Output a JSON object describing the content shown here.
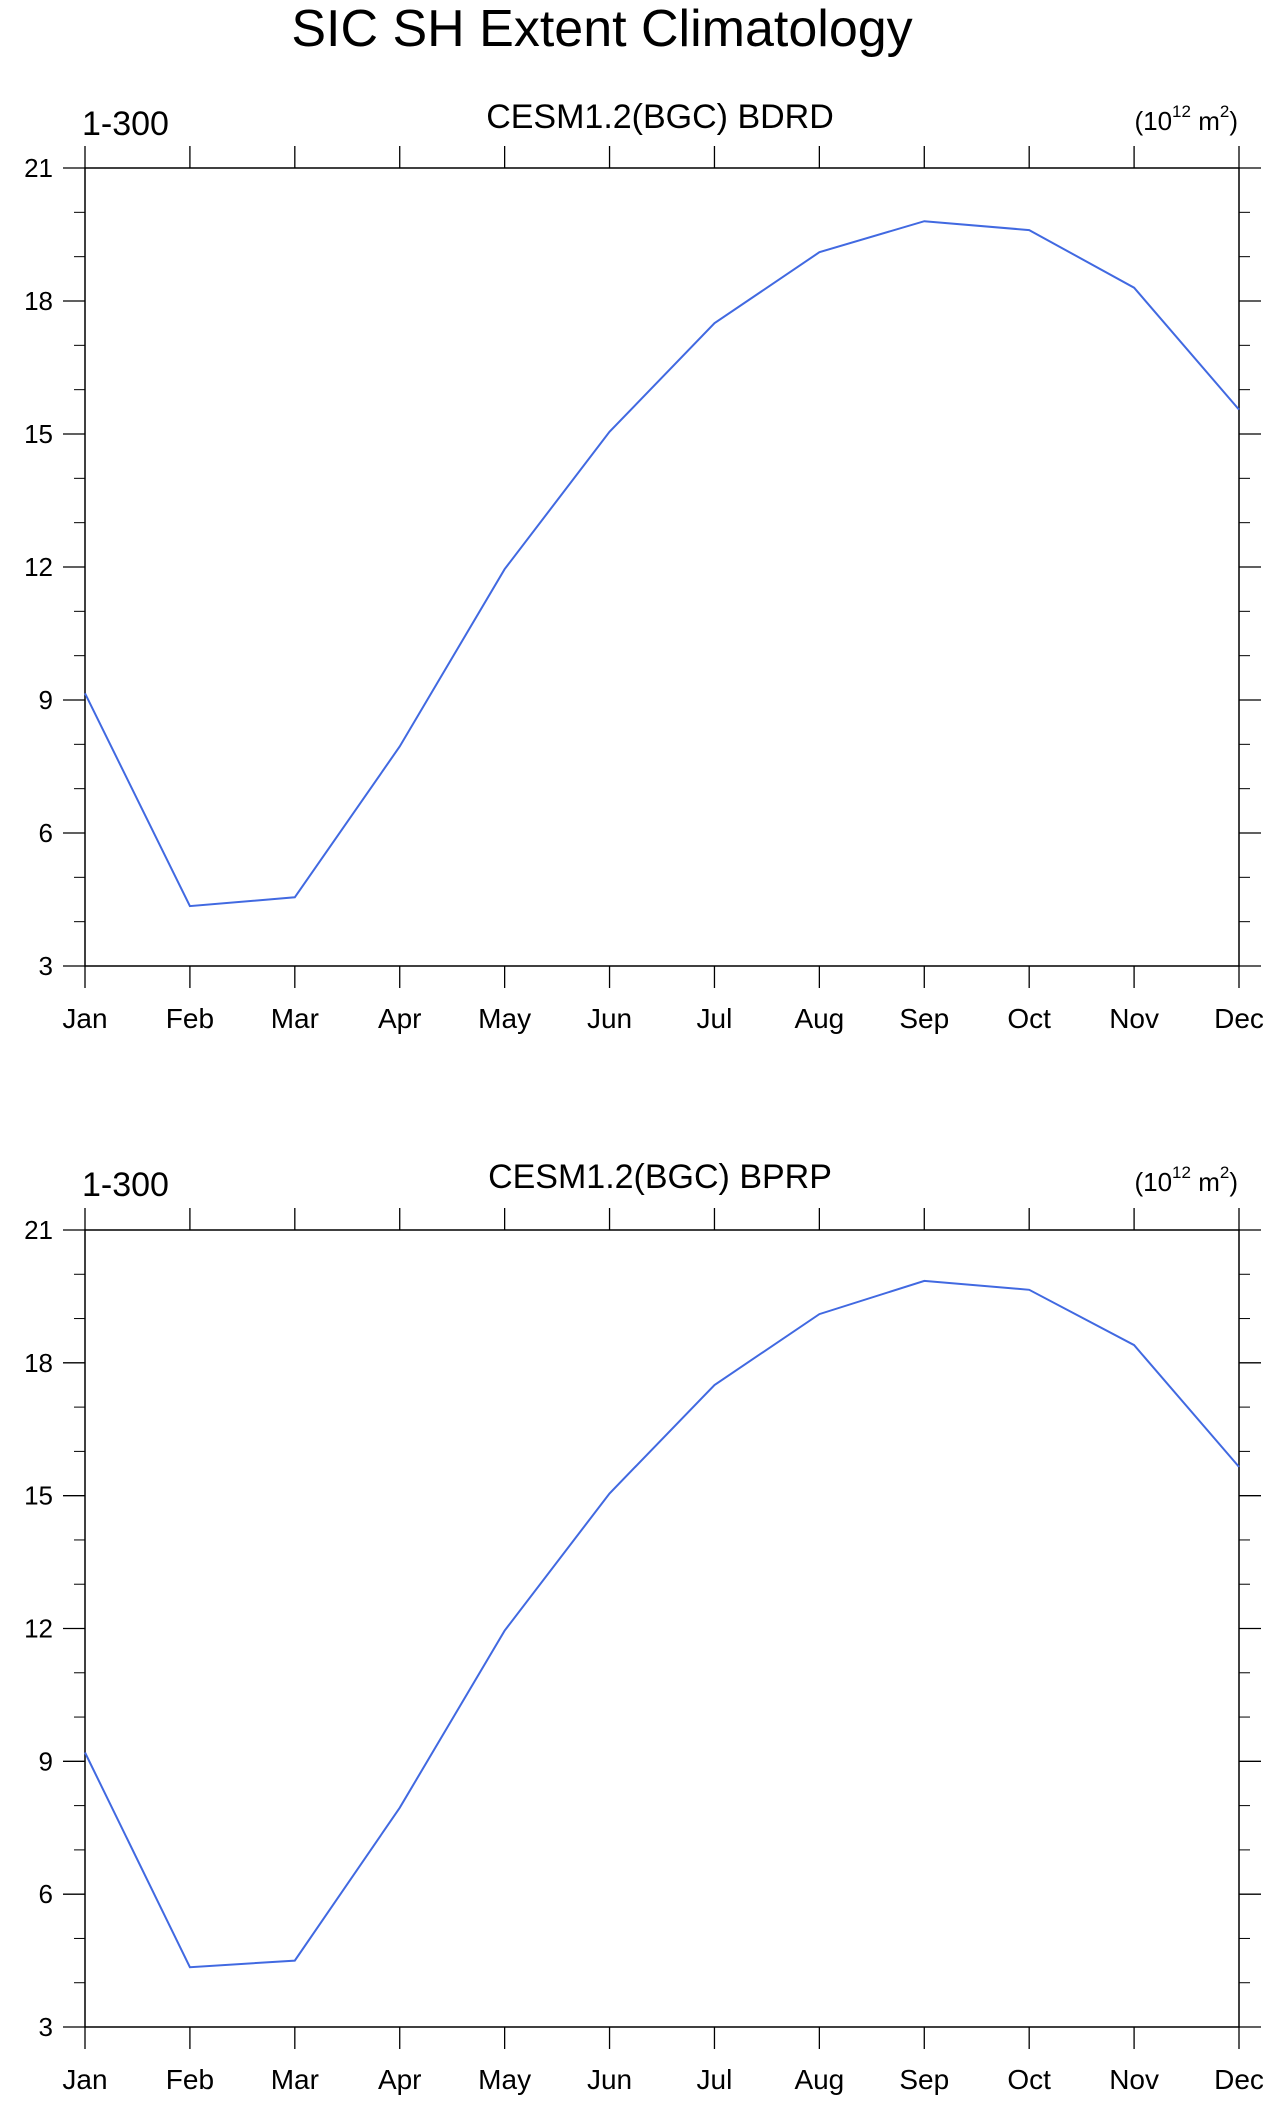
{
  "page_title": "SIC SH Extent Climatology",
  "chart_data": [
    {
      "type": "line",
      "title": "CESM1.2(BGC) BDRD",
      "left_label": "1-300",
      "units": {
        "base": "(10",
        "exp1": "12",
        "mid": " m",
        "exp2": "2",
        "end": ")"
      },
      "categories": [
        "Jan",
        "Feb",
        "Mar",
        "Apr",
        "May",
        "Jun",
        "Jul",
        "Aug",
        "Sep",
        "Oct",
        "Nov",
        "Dec"
      ],
      "series": [
        {
          "values": [
            9.15,
            4.35,
            4.55,
            7.95,
            11.95,
            15.05,
            17.5,
            19.1,
            19.8,
            19.6,
            18.3,
            15.55
          ]
        }
      ],
      "ylim": [
        3,
        21
      ],
      "yticks": [
        3,
        6,
        9,
        12,
        15,
        18,
        21
      ],
      "line_color": "#4169e1"
    },
    {
      "type": "line",
      "title": "CESM1.2(BGC) BPRP",
      "left_label": "1-300",
      "units": {
        "base": "(10",
        "exp1": "12",
        "mid": " m",
        "exp2": "2",
        "end": ")"
      },
      "categories": [
        "Jan",
        "Feb",
        "Mar",
        "Apr",
        "May",
        "Jun",
        "Jul",
        "Aug",
        "Sep",
        "Oct",
        "Nov",
        "Dec"
      ],
      "series": [
        {
          "values": [
            9.2,
            4.35,
            4.5,
            7.95,
            11.95,
            15.05,
            17.5,
            19.1,
            19.85,
            19.65,
            18.4,
            15.65
          ]
        }
      ],
      "ylim": [
        3,
        21
      ],
      "yticks": [
        3,
        6,
        9,
        12,
        15,
        18,
        21
      ],
      "line_color": "#4169e1"
    }
  ]
}
